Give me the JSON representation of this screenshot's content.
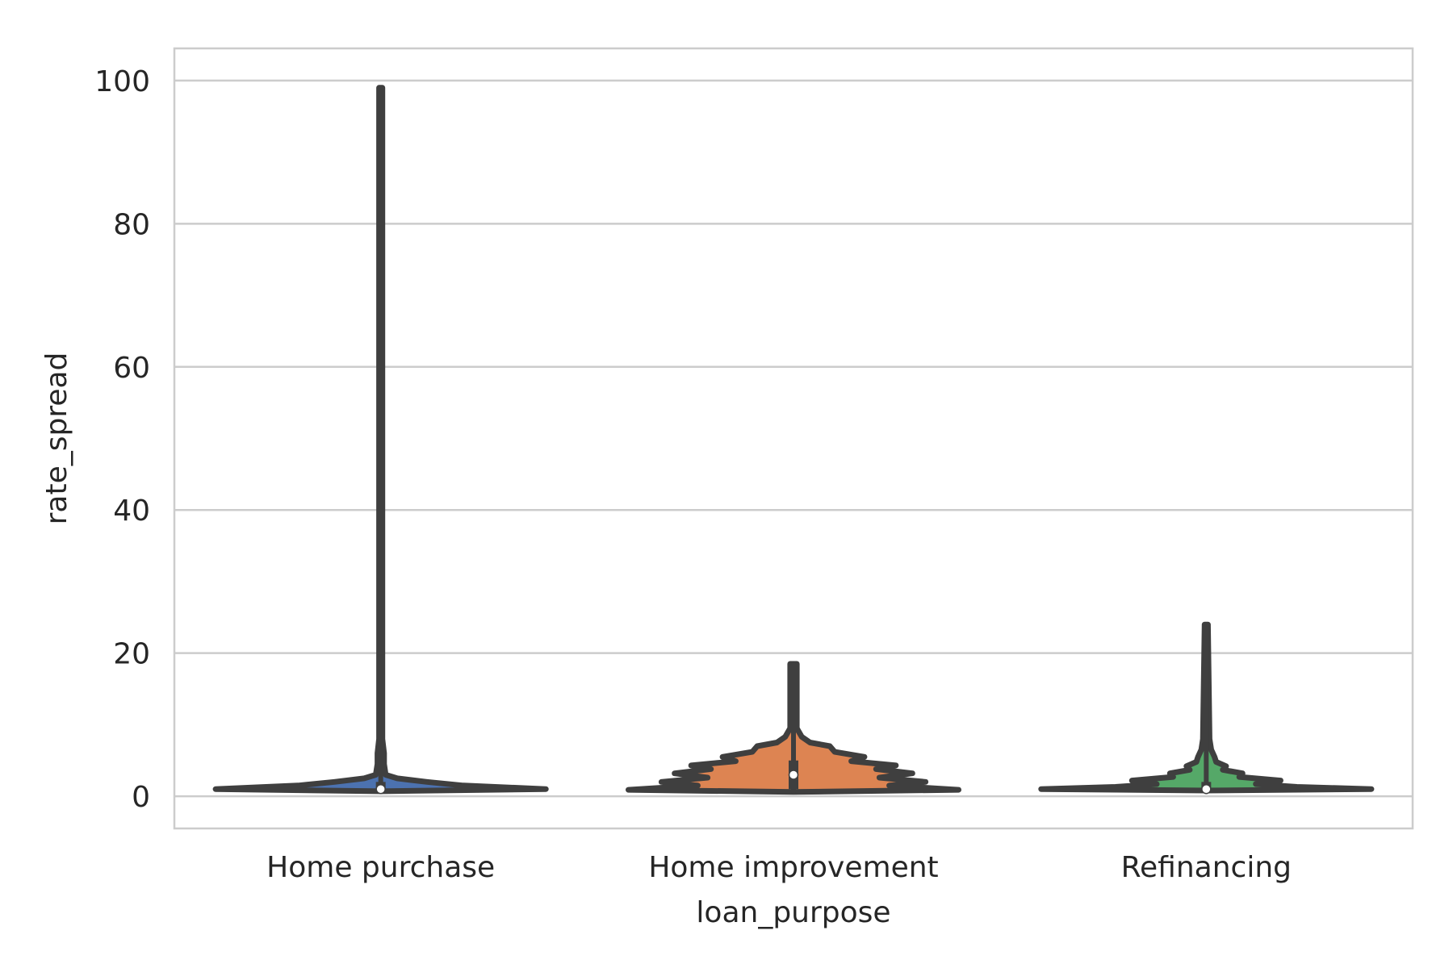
{
  "chart_data": {
    "type": "violin",
    "xlabel": "loan_purpose",
    "ylabel": "rate_spread",
    "categories": [
      "Home purchase",
      "Home improvement",
      "Refinancing"
    ],
    "ylim": [
      -4.5,
      104.5
    ],
    "yticks": [
      0,
      20,
      40,
      60,
      80,
      100
    ],
    "grid": true,
    "colors": [
      "#4c72b0",
      "#dd8452",
      "#55a868"
    ],
    "outline_color": "#3f3f3f",
    "violins": [
      {
        "category": "Home purchase",
        "min": 1.0,
        "max": 99.0,
        "median": 1.0,
        "q1": 1.0,
        "q3": 2.0,
        "profile": [
          [
            0.7,
            0.0
          ],
          [
            1.0,
            1.0
          ],
          [
            1.5,
            0.5
          ],
          [
            2.0,
            0.28
          ],
          [
            2.5,
            0.1
          ],
          [
            3.0,
            0.03
          ],
          [
            4.5,
            0.02
          ],
          [
            6.0,
            0.02
          ],
          [
            8.0,
            0.01
          ],
          [
            99.0,
            0.01
          ]
        ]
      },
      {
        "category": "Home improvement",
        "min": 0.6,
        "max": 18.5,
        "median": 3.0,
        "q1": 1.0,
        "q3": 5.0,
        "profile": [
          [
            0.6,
            0.0
          ],
          [
            0.9,
            1.0
          ],
          [
            1.5,
            0.58
          ],
          [
            2.0,
            0.8
          ],
          [
            2.6,
            0.52
          ],
          [
            3.2,
            0.72
          ],
          [
            3.8,
            0.5
          ],
          [
            4.3,
            0.62
          ],
          [
            4.9,
            0.35
          ],
          [
            5.5,
            0.43
          ],
          [
            6.2,
            0.25
          ],
          [
            7.0,
            0.22
          ],
          [
            7.5,
            0.1
          ],
          [
            8.3,
            0.05
          ],
          [
            9.5,
            0.02
          ],
          [
            18.5,
            0.02
          ]
        ]
      },
      {
        "category": "Refinancing",
        "min": 0.8,
        "max": 24.0,
        "median": 1.0,
        "q1": 1.0,
        "q3": 2.0,
        "profile": [
          [
            0.8,
            0.0
          ],
          [
            1.0,
            1.0
          ],
          [
            1.3,
            0.55
          ],
          [
            1.7,
            0.3
          ],
          [
            2.2,
            0.45
          ],
          [
            2.7,
            0.2
          ],
          [
            3.2,
            0.22
          ],
          [
            3.7,
            0.1
          ],
          [
            4.2,
            0.12
          ],
          [
            4.8,
            0.06
          ],
          [
            5.5,
            0.05
          ],
          [
            6.5,
            0.03
          ],
          [
            8.0,
            0.02
          ],
          [
            24.0,
            0.01
          ]
        ]
      }
    ]
  }
}
